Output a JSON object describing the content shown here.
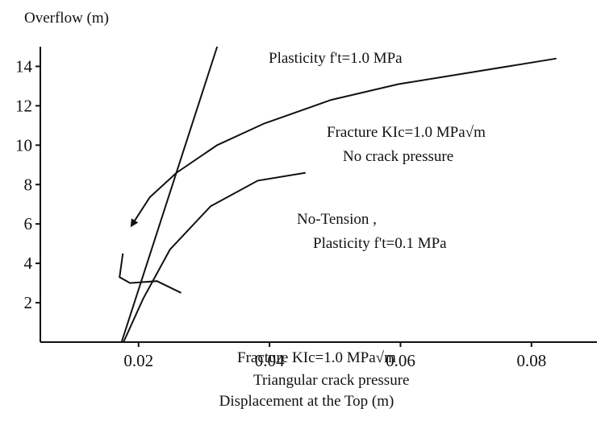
{
  "chart_data": {
    "type": "line",
    "ylabel": "Overflow (m)",
    "xlabel": "Displacement at the Top (m)",
    "xlim": [
      0.005,
      0.09
    ],
    "ylim": [
      0,
      15
    ],
    "xticks": [
      0.02,
      0.04,
      0.06,
      0.08
    ],
    "yticks": [
      2,
      4,
      6,
      8,
      10,
      12,
      14
    ],
    "color": "#111111",
    "series": [
      {
        "name": "Plasticity f't=1.0 MPa",
        "color": "#111111",
        "x": [
          0.0174,
          0.032
        ],
        "values": [
          0,
          15
        ]
      },
      {
        "name": "Fracture KIc=1.0 MPa√m",
        "color": "#111111",
        "x": [
          0.0838,
          0.0597,
          0.0494,
          0.0392,
          0.032,
          0.0258,
          0.0217,
          0.0189
        ],
        "values": [
          14.4,
          13.1,
          12.3,
          11.1,
          10.0,
          8.6,
          7.35,
          5.9
        ]
      },
      {
        "name": "No-Tension ,",
        "color": "#111111",
        "x": [
          0.0177,
          0.0207,
          0.0248,
          0.031,
          0.0382,
          0.0455
        ],
        "values": [
          0,
          2.2,
          4.7,
          6.9,
          8.2,
          8.6
        ]
      },
      {
        "name": "Fracture KIc=1.0 MPa√m",
        "color": "#111111",
        "x": [
          0.0176,
          0.0171,
          0.0187,
          0.0228,
          0.0265
        ],
        "values": [
          4.5,
          3.3,
          3.0,
          3.1,
          2.5
        ]
      }
    ],
    "annotations": [
      "No crack pressure",
      "Plasticity f't=0.1 MPa",
      "Triangular crack pressure"
    ]
  }
}
